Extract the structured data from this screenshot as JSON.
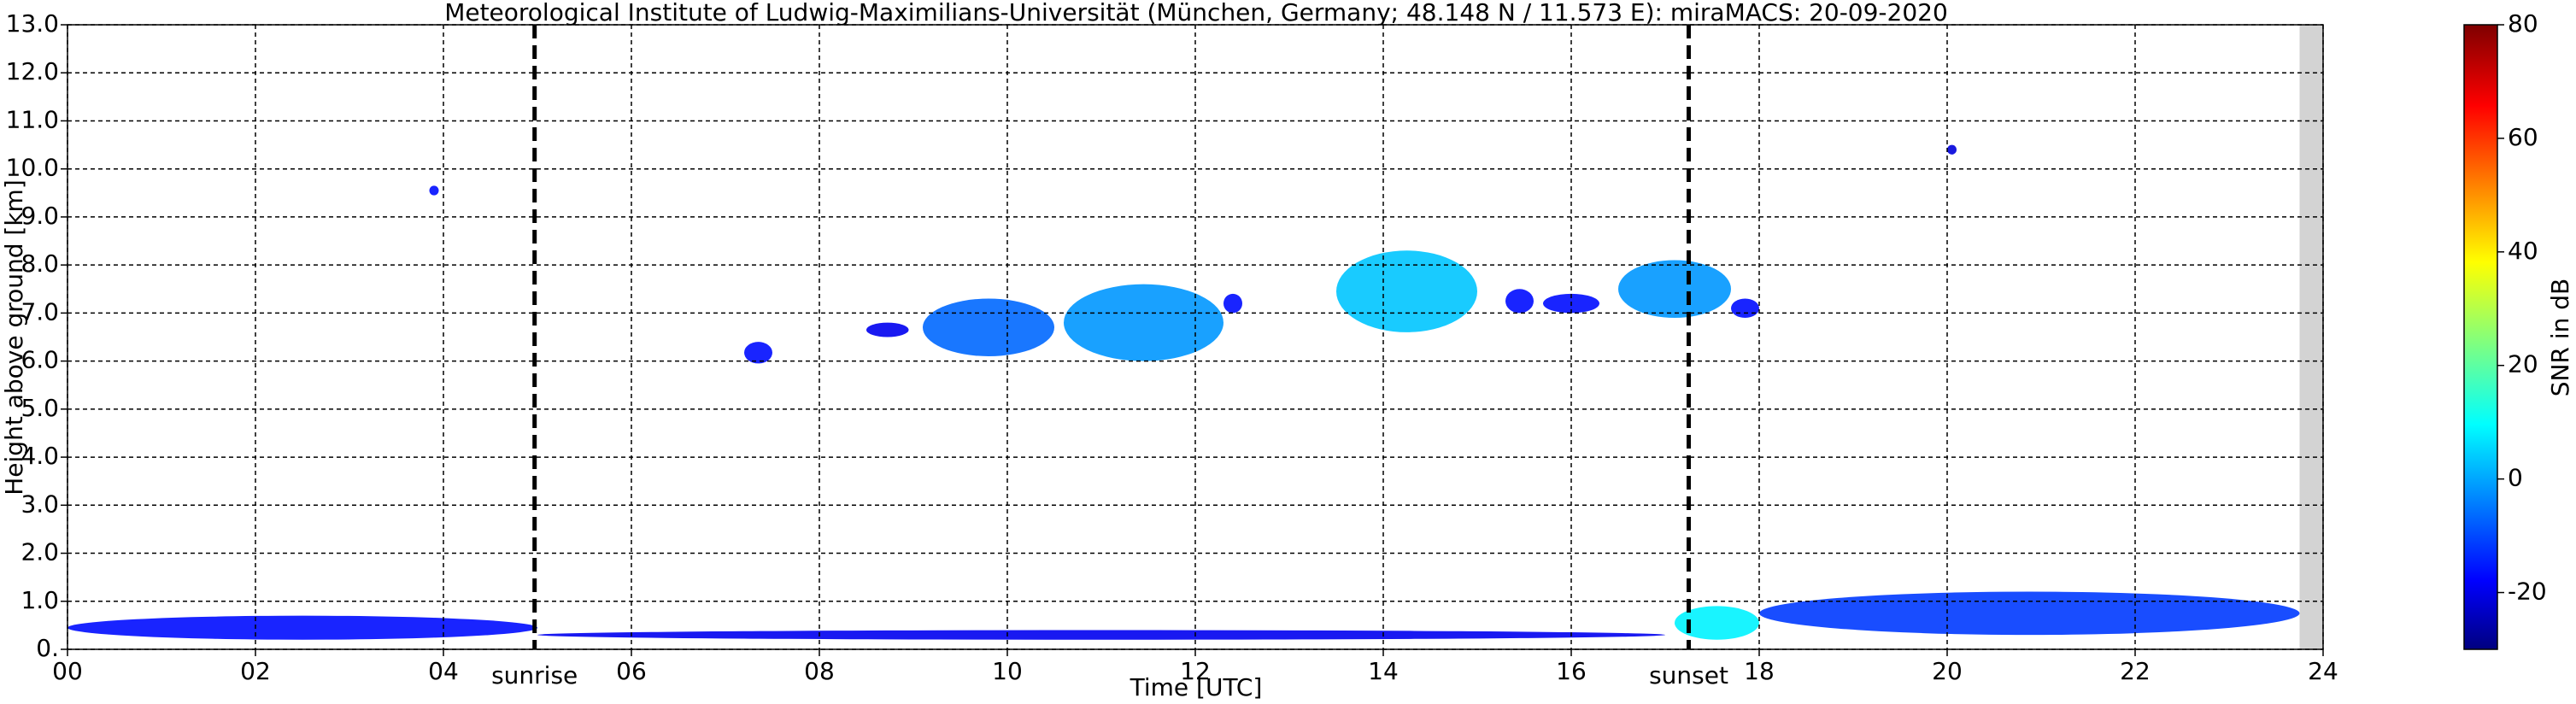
{
  "chart_data": {
    "type": "heatmap",
    "title": "Meteorological Institute of Ludwig-Maximilians-Universität (München, Germany; 48.148 N / 11.573 E):    miraMACS: 20-09-2020",
    "xlabel": "Time [UTC]",
    "ylabel": "Height above ground [km]",
    "colorbar_label": "SNR in dB",
    "xlim": [
      0,
      24
    ],
    "ylim": [
      0,
      13
    ],
    "clim": [
      -30,
      80
    ],
    "colormap": "jet",
    "grid": true,
    "data_end": 23.75,
    "xticks": [
      {
        "value": 0,
        "label": "00"
      },
      {
        "value": 2,
        "label": "02"
      },
      {
        "value": 4,
        "label": "04"
      },
      {
        "value": 6,
        "label": "06"
      },
      {
        "value": 8,
        "label": "08"
      },
      {
        "value": 10,
        "label": "10"
      },
      {
        "value": 12,
        "label": "12"
      },
      {
        "value": 14,
        "label": "14"
      },
      {
        "value": 16,
        "label": "16"
      },
      {
        "value": 18,
        "label": "18"
      },
      {
        "value": 20,
        "label": "20"
      },
      {
        "value": 22,
        "label": "22"
      },
      {
        "value": 24,
        "label": "24"
      }
    ],
    "yticks": [
      {
        "value": 0,
        "label": "0."
      },
      {
        "value": 1,
        "label": "1.0"
      },
      {
        "value": 2,
        "label": "2.0"
      },
      {
        "value": 3,
        "label": "3.0"
      },
      {
        "value": 4,
        "label": "4.0"
      },
      {
        "value": 5,
        "label": "5.0"
      },
      {
        "value": 6,
        "label": "6.0"
      },
      {
        "value": 7,
        "label": "7.0"
      },
      {
        "value": 8,
        "label": "8.0"
      },
      {
        "value": 9,
        "label": "9.0"
      },
      {
        "value": 10,
        "label": "10.0"
      },
      {
        "value": 11,
        "label": "11.0"
      },
      {
        "value": 12,
        "label": "12.0"
      },
      {
        "value": 13,
        "label": "13.0"
      }
    ],
    "cticks": [
      -20,
      0,
      20,
      40,
      60,
      80
    ],
    "events": [
      {
        "label": "sunrise",
        "x": 4.97
      },
      {
        "label": "sunset",
        "x": 17.25
      }
    ],
    "echoes": [
      {
        "x": [
          3.85,
          3.95
        ],
        "y": [
          9.45,
          9.65
        ],
        "snr": -15
      },
      {
        "x": [
          7.2,
          7.5
        ],
        "y": [
          5.95,
          6.4
        ],
        "snr": -15
      },
      {
        "x": [
          8.5,
          8.95
        ],
        "y": [
          6.5,
          6.8
        ],
        "snr": -18
      },
      {
        "x": [
          9.1,
          10.5
        ],
        "y": [
          6.1,
          7.3
        ],
        "snr": -5
      },
      {
        "x": [
          10.6,
          12.3
        ],
        "y": [
          6.0,
          7.6
        ],
        "snr": 0
      },
      {
        "x": [
          12.3,
          12.5
        ],
        "y": [
          7.0,
          7.4
        ],
        "snr": -15
      },
      {
        "x": [
          13.5,
          15.0
        ],
        "y": [
          6.6,
          8.3
        ],
        "snr": 5
      },
      {
        "x": [
          15.3,
          15.6
        ],
        "y": [
          7.0,
          7.5
        ],
        "snr": -15
      },
      {
        "x": [
          15.7,
          16.3
        ],
        "y": [
          7.0,
          7.4
        ],
        "snr": -15
      },
      {
        "x": [
          16.5,
          17.7
        ],
        "y": [
          6.9,
          8.1
        ],
        "snr": 0
      },
      {
        "x": [
          17.7,
          18.0
        ],
        "y": [
          6.9,
          7.3
        ],
        "snr": -15
      },
      {
        "x": [
          20.0,
          20.1
        ],
        "y": [
          10.3,
          10.5
        ],
        "snr": -20
      },
      {
        "x": [
          0,
          5
        ],
        "y": [
          0.2,
          0.7
        ],
        "snr": -15
      },
      {
        "x": [
          5,
          17
        ],
        "y": [
          0.2,
          0.4
        ],
        "snr": -18
      },
      {
        "x": [
          17.1,
          18
        ],
        "y": [
          0.2,
          0.9
        ],
        "snr": 10
      },
      {
        "x": [
          18,
          23.75
        ],
        "y": [
          0.3,
          1.2
        ],
        "snr": -10
      }
    ]
  }
}
